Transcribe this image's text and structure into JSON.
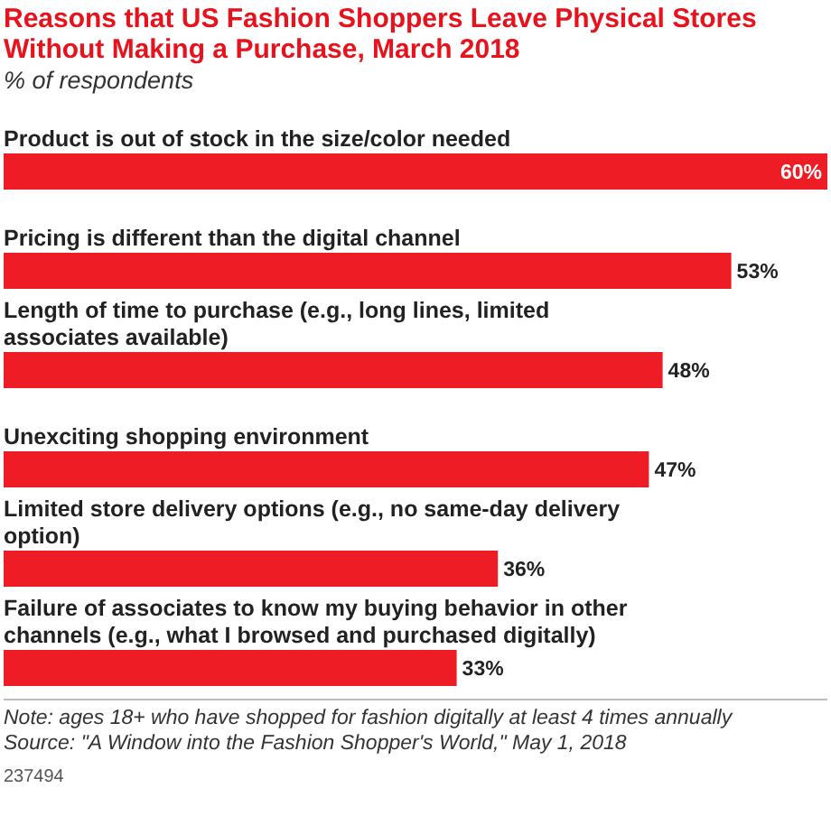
{
  "chart_data": {
    "type": "bar",
    "orientation": "horizontal",
    "title": "Reasons that US Fashion Shoppers Leave Physical Stores Without Making a Purchase, March 2018",
    "subtitle": "% of respondents",
    "categories": [
      "Product is out of stock in the size/color needed",
      "Pricing is different than the digital channel",
      "Length of time to purchase (e.g., long lines, limited associates available)",
      "Unexciting shopping environment",
      "Limited store delivery options (e.g., no same-day delivery option)",
      "Failure of associates to know my buying behavior in other channels (e.g., what I browsed and purchased digitally)"
    ],
    "values": [
      60,
      53,
      48,
      47,
      36,
      33
    ],
    "value_labels": [
      "60%",
      "53%",
      "48%",
      "47%",
      "36%",
      "33%"
    ],
    "color": "#ee1c24",
    "annotations": [
      "Note: ages 18+ who have shopped for fashion digitally at least 4 times annually",
      "Source: \"A Window into the Fashion Shopper's World,\" May 1, 2018",
      "237494"
    ]
  }
}
